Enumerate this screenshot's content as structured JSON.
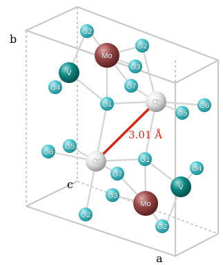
{
  "axes": {
    "a": "a",
    "b": "b",
    "c": "c"
  },
  "distance": {
    "text": "3.01 Å",
    "color": "#dd2211"
  },
  "colors": {
    "cell_edge": "#c8c8c8",
    "O": "#46c6cf",
    "Mo": "#9a4848",
    "V": "#0e8a86",
    "Cr": "#e8e8e8",
    "bond": "#d0d0d0"
  },
  "atoms": [
    {
      "id": "o2-top-left",
      "el": "O",
      "label": "O2"
    },
    {
      "id": "o2-top-right",
      "el": "O",
      "label": "O2"
    },
    {
      "id": "mo-top",
      "el": "Mo",
      "label": "Mo"
    },
    {
      "id": "o3-top",
      "el": "O",
      "label": "O3"
    },
    {
      "id": "v-left",
      "el": "V",
      "label": "V"
    },
    {
      "id": "o4-left",
      "el": "O",
      "label": "O4"
    },
    {
      "id": "o7-top",
      "el": "O",
      "label": "O7"
    },
    {
      "id": "o1-top",
      "el": "O",
      "label": "O1"
    },
    {
      "id": "cr-top",
      "el": "Cr",
      "label": "Cr"
    },
    {
      "id": "o5-right",
      "el": "O",
      "label": "O5"
    },
    {
      "id": "o6-right",
      "el": "O",
      "label": "O6"
    },
    {
      "id": "o5-left",
      "el": "O",
      "label": "O5"
    },
    {
      "id": "o6-left",
      "el": "O",
      "label": "O6"
    },
    {
      "id": "cr-bottom",
      "el": "Cr",
      "label": "Cr"
    },
    {
      "id": "o1-bottom",
      "el": "O",
      "label": "O1"
    },
    {
      "id": "o7-bottom",
      "el": "O",
      "label": "O7"
    },
    {
      "id": "o3-bottom",
      "el": "O",
      "label": "O3"
    },
    {
      "id": "o4-right",
      "el": "O",
      "label": "O4"
    },
    {
      "id": "v-right",
      "el": "V",
      "label": "V"
    },
    {
      "id": "mo-bottom",
      "el": "Mo",
      "label": "Mo"
    },
    {
      "id": "o2-bottom-left",
      "el": "O",
      "label": "O2"
    },
    {
      "id": "o2-bottom-right",
      "el": "O",
      "label": "O2"
    }
  ]
}
